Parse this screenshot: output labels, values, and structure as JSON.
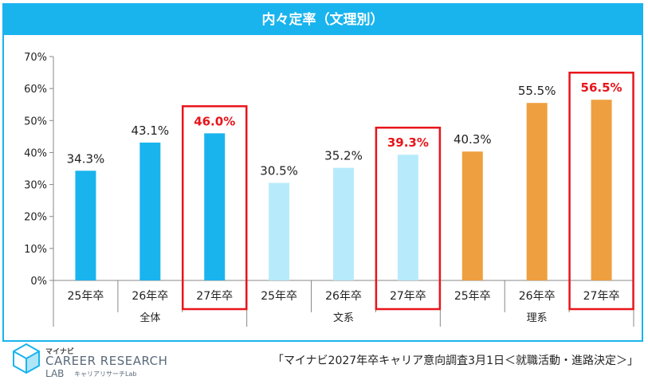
{
  "title": "内々定率（文理別）",
  "logo": {
    "kana": "マイナビ",
    "name": "CAREER RESEARCH",
    "lab": "LAB",
    "sub": "キャリアリサーチLab"
  },
  "source": "「マイナビ2027年卒キャリア意向調査3月1日＜就職活動・進路決定＞」",
  "chart_data": {
    "type": "bar",
    "ylim": [
      0,
      70
    ],
    "yticks": [
      "0%",
      "10%",
      "20%",
      "30%",
      "40%",
      "50%",
      "60%",
      "70%"
    ],
    "groups": [
      {
        "name": "全体",
        "color": "#19b4ee",
        "categories": [
          "25年卒",
          "26年卒",
          "27年卒"
        ],
        "values": [
          34.3,
          43.1,
          46.0
        ],
        "labels": [
          "34.3%",
          "43.1%",
          "46.0%"
        ]
      },
      {
        "name": "文系",
        "color": "#b7ebfb",
        "categories": [
          "25年卒",
          "26年卒",
          "27年卒"
        ],
        "values": [
          30.5,
          35.2,
          39.3
        ],
        "labels": [
          "30.5%",
          "35.2%",
          "39.3%"
        ]
      },
      {
        "name": "理系",
        "color": "#ee9f3f",
        "categories": [
          "25年卒",
          "26年卒",
          "27年卒"
        ],
        "values": [
          40.3,
          55.5,
          56.5
        ],
        "labels": [
          "40.3%",
          "55.5%",
          "56.5%"
        ]
      }
    ],
    "highlight": "27年卒",
    "highlight_color": "#e8141b",
    "grid": false,
    "legend": "none"
  }
}
